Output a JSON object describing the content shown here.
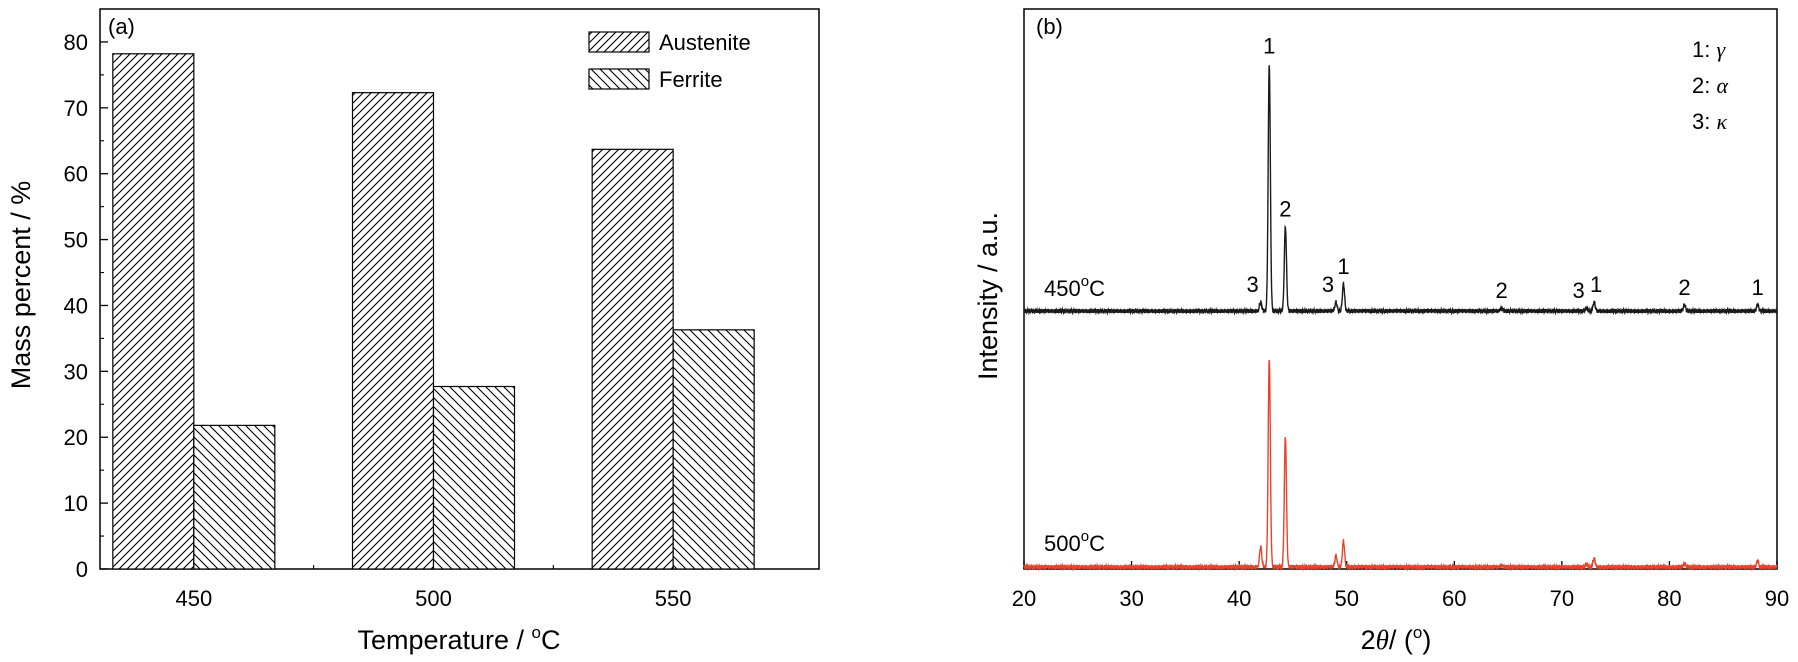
{
  "chart_data": [
    {
      "type": "bar",
      "panel_label": "(a)",
      "categories": [
        "450",
        "500",
        "550"
      ],
      "series": [
        {
          "name": "Austenite",
          "values": [
            78.2,
            72.3,
            63.7
          ],
          "pattern": "forward-hatch"
        },
        {
          "name": "Ferrite",
          "values": [
            21.8,
            27.7,
            36.3
          ],
          "pattern": "back-hatch"
        }
      ],
      "xlabel": "Temperature / ",
      "xlabel_unit": "C",
      "xlabel_degree": "o",
      "ylabel": "Mass percent / %",
      "ylim": [
        0,
        85
      ],
      "yticks": [
        "0",
        "10",
        "20",
        "30",
        "40",
        "50",
        "60",
        "70",
        "80"
      ],
      "legend_position": "top-right",
      "grid": false
    },
    {
      "type": "line",
      "panel_label": "(b)",
      "xlabel_prefix": "2",
      "xlabel_symbol": "θ",
      "xlabel_unit": "/ (",
      "xlabel_degree": "o",
      "xlabel_close": ")",
      "ylabel": "Intensity / a.u.",
      "xlim": [
        20,
        90
      ],
      "xticks": [
        "20",
        "30",
        "40",
        "50",
        "60",
        "70",
        "80",
        "90"
      ],
      "peak_legend": [
        "1: ",
        "2: ",
        "3: "
      ],
      "peak_legend_symbols": [
        "γ",
        "α",
        "κ"
      ],
      "series": [
        {
          "name": "450",
          "unit": "C",
          "degree": "o",
          "color": "#1a1a1a",
          "peaks": [
            {
              "x": 42.0,
              "h": 0.03,
              "label": "3"
            },
            {
              "x": 42.8,
              "h": 0.82,
              "label": "1"
            },
            {
              "x": 44.3,
              "h": 0.28,
              "label": "2"
            },
            {
              "x": 49.0,
              "h": 0.03,
              "label": "3"
            },
            {
              "x": 49.7,
              "h": 0.09,
              "label": "1"
            },
            {
              "x": 64.4,
              "h": 0.01,
              "label": "2"
            },
            {
              "x": 72.3,
              "h": 0.01,
              "label": "3"
            },
            {
              "x": 73.0,
              "h": 0.03,
              "label": "1"
            },
            {
              "x": 81.4,
              "h": 0.02,
              "label": "2"
            },
            {
              "x": 88.2,
              "h": 0.02,
              "label": "1"
            }
          ]
        },
        {
          "name": "500",
          "unit": "C",
          "degree": "o",
          "color": "#e3452c",
          "peaks": [
            {
              "x": 42.0,
              "h": 0.07,
              "label": ""
            },
            {
              "x": 42.8,
              "h": 0.72,
              "label": ""
            },
            {
              "x": 44.3,
              "h": 0.45,
              "label": ""
            },
            {
              "x": 49.0,
              "h": 0.04,
              "label": ""
            },
            {
              "x": 49.7,
              "h": 0.09,
              "label": ""
            },
            {
              "x": 64.4,
              "h": 0.005,
              "label": ""
            },
            {
              "x": 72.3,
              "h": 0.01,
              "label": ""
            },
            {
              "x": 73.0,
              "h": 0.03,
              "label": ""
            },
            {
              "x": 81.4,
              "h": 0.01,
              "label": ""
            },
            {
              "x": 88.2,
              "h": 0.02,
              "label": ""
            }
          ]
        }
      ],
      "legend_position": "top-right",
      "grid": false
    }
  ]
}
